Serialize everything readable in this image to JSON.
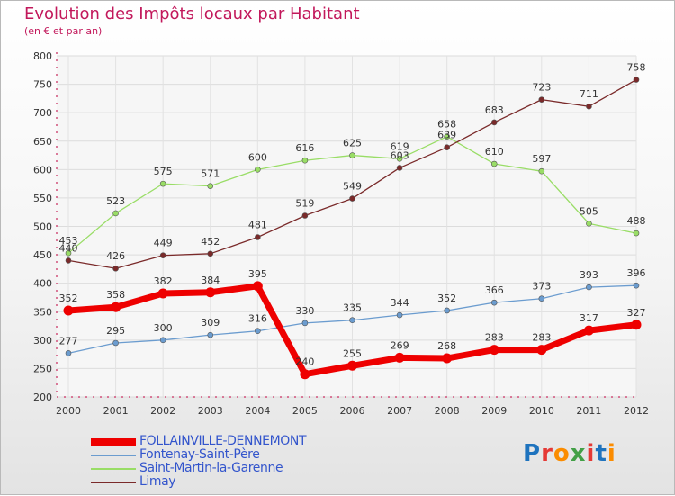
{
  "header": {
    "title": "Evolution des Impôts locaux par Habitant",
    "subtitle": "(en € et par an)"
  },
  "logo": {
    "text": "Proxiti",
    "colors": [
      "#1e73be",
      "#e53935",
      "#fb8c00",
      "#43a047",
      "#e53935",
      "#1e73be",
      "#fb8c00"
    ]
  },
  "chart_data": {
    "type": "line",
    "title": "Evolution des Impôts locaux par Habitant",
    "subtitle": "(en € et par an)",
    "x": [
      "2000",
      "2001",
      "2002",
      "2003",
      "2004",
      "2005",
      "2006",
      "2007",
      "2008",
      "2009",
      "2010",
      "2011",
      "2012"
    ],
    "ylim": [
      200,
      800
    ],
    "yticks": [
      200,
      250,
      300,
      350,
      400,
      450,
      500,
      550,
      600,
      650,
      700,
      750,
      800
    ],
    "grid": true,
    "legend_position": "bottom",
    "series": [
      {
        "name": "FOLLAINVILLE-DENNEMONT",
        "color": "#ee0000",
        "values": [
          352,
          358,
          382,
          384,
          395,
          240,
          255,
          269,
          268,
          283,
          283,
          317,
          327
        ]
      },
      {
        "name": "Fontenay-Saint-Père",
        "color": "#6b9ccf",
        "values": [
          277,
          295,
          300,
          309,
          316,
          330,
          335,
          344,
          352,
          366,
          373,
          393,
          396
        ]
      },
      {
        "name": "Saint-Martin-la-Garenne",
        "color": "#99dd66",
        "values": [
          453,
          523,
          575,
          571,
          600,
          616,
          625,
          619,
          658,
          610,
          597,
          505,
          488
        ]
      },
      {
        "name": "Limay",
        "color": "#7a2a2a",
        "values": [
          440,
          426,
          449,
          452,
          481,
          519,
          549,
          603,
          639,
          683,
          723,
          711,
          758
        ]
      }
    ]
  }
}
